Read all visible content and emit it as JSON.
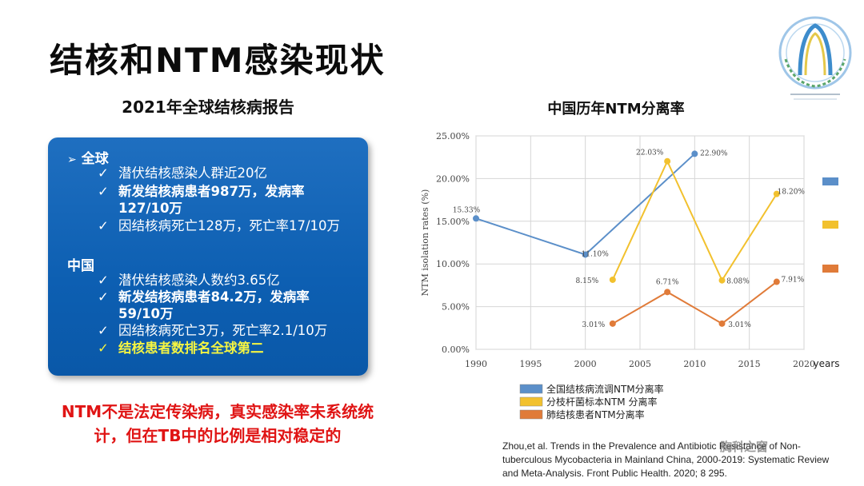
{
  "slide": {
    "title": "结核和NTM感染现状",
    "left_subtitle": "2021年全球结核病报告",
    "chart_title": "中国历年NTM分离率",
    "citation": "Zhou,et al. Trends in the Prevalence and Antibiotic Resistance of Non-tuberculous Mycobacteria in Mainland China, 2000-2019: Systematic Review and Meta-Analysis. Front Public Health. 2020; 8 295.",
    "watermark": "胸科之窗"
  },
  "report": {
    "global_label": "全球",
    "global_items": [
      {
        "text": "潜伏结核感染人群近20亿",
        "style": "normal"
      },
      {
        "text": "新发结核病患者987万，发病率127/10万",
        "style": "bold"
      },
      {
        "text": "因结核病死亡128万，死亡率17/10万",
        "style": "normal"
      }
    ],
    "china_label": "中国",
    "china_items": [
      {
        "text": "潜伏结核感染人数约3.65亿",
        "style": "normal"
      },
      {
        "text": "新发结核病患者84.2万，发病率59/10万",
        "style": "bold"
      },
      {
        "text": "因结核病死亡3万，死亡率2.1/10万",
        "style": "normal"
      },
      {
        "text": "结核患者数排名全球第二",
        "style": "yellow"
      }
    ]
  },
  "note": "NTM不是法定传染病，真实感染率未系统统计，但在TB中的比例是相对稳定的",
  "colors": {
    "box_blue": "#0d5fb2",
    "series_blue": "#5b8fc9",
    "series_yellow": "#f2c12e",
    "series_orange": "#e07b39",
    "note_red": "#e01414"
  },
  "chart_data": {
    "type": "line",
    "title": "中国历年NTM分离率",
    "xlabel": "years",
    "ylabel": "NTM isolation rates (%)",
    "xlim": [
      1990,
      2020
    ],
    "ylim": [
      0,
      25
    ],
    "x_ticks": [
      "1990",
      "1995",
      "2000",
      "2005",
      "2010",
      "2015",
      "2020"
    ],
    "y_ticks": [
      "0.00%",
      "5.00%",
      "10.00%",
      "15.00%",
      "20.00%",
      "25.00%"
    ],
    "grid": true,
    "legend_position": "bottom-left",
    "series": [
      {
        "name": "全国结核病流调NTM分离率",
        "color": "#5b8fc9",
        "points": [
          {
            "x": 1990,
            "y": 15.33,
            "label": "15.33%"
          },
          {
            "x": 2000,
            "y": 11.1,
            "label": "11.10%"
          },
          {
            "x": 2010,
            "y": 22.9,
            "label": "22.90%"
          }
        ]
      },
      {
        "name": "分枝杆菌标本NTM 分离率",
        "color": "#f2c12e",
        "points": [
          {
            "x": 2002.5,
            "y": 8.15,
            "label": "8.15%"
          },
          {
            "x": 2007.5,
            "y": 22.03,
            "label": "22.03%"
          },
          {
            "x": 2012.5,
            "y": 8.08,
            "label": "8.08%"
          },
          {
            "x": 2017.5,
            "y": 18.2,
            "label": "18.20%"
          }
        ]
      },
      {
        "name": "肺结核患者NTM分离率",
        "color": "#e07b39",
        "points": [
          {
            "x": 2002.5,
            "y": 3.01,
            "label": "3.01%"
          },
          {
            "x": 2007.5,
            "y": 6.71,
            "label": "6.71%"
          },
          {
            "x": 2012.5,
            "y": 3.01,
            "label": "3.01%"
          },
          {
            "x": 2017.5,
            "y": 7.91,
            "label": "7.91%"
          }
        ]
      }
    ]
  }
}
